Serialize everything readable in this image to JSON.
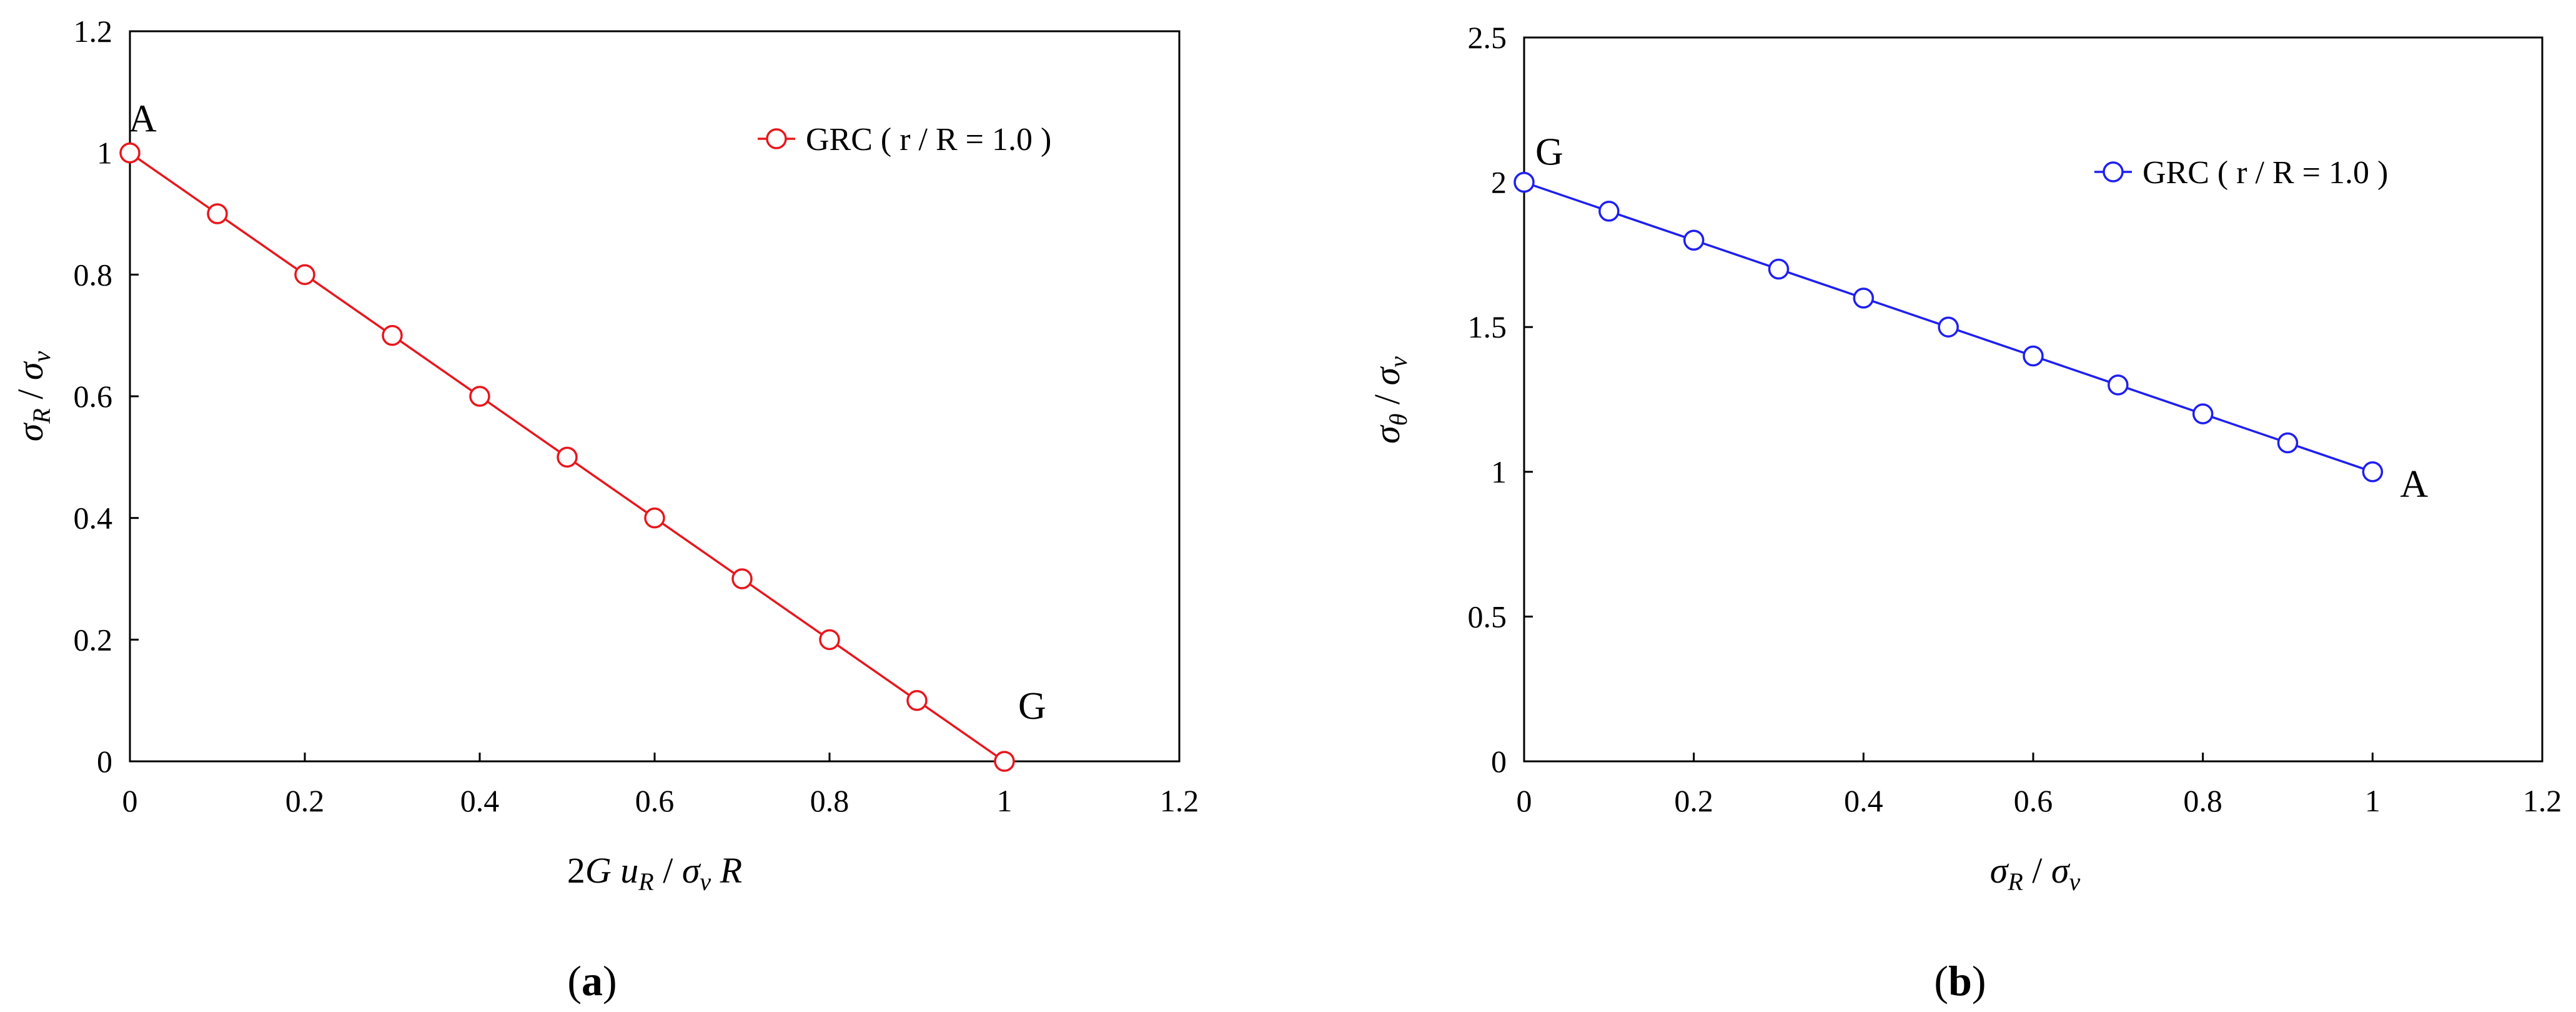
{
  "chart_data": [
    {
      "type": "line",
      "panel_label": "(a)",
      "panel_letter": "a",
      "xlabel": "2G u_R / σ_v R",
      "ylabel": "σ_R / σ_v",
      "xlim": [
        0,
        1.2
      ],
      "ylim": [
        0,
        1.2
      ],
      "xticks": [
        "0",
        "0.2",
        "0.4",
        "0.6",
        "0.8",
        "1",
        "1.2"
      ],
      "yticks": [
        "0",
        "0.2",
        "0.4",
        "0.6",
        "0.8",
        "1",
        "1.2"
      ],
      "grid": false,
      "legend_position": "top-right",
      "series": [
        {
          "name": "GRC ( r / R = 1.0 )",
          "color": "#e8171d",
          "marker": "open-circle",
          "x": [
            0,
            0.1,
            0.2,
            0.3,
            0.4,
            0.5,
            0.6,
            0.7,
            0.8,
            0.9,
            1.0
          ],
          "y": [
            1.0,
            0.9,
            0.8,
            0.7,
            0.6,
            0.5,
            0.4,
            0.3,
            0.2,
            0.1,
            0.0
          ]
        }
      ],
      "annotations": [
        {
          "text": "A",
          "x": 0,
          "y": 1.0
        },
        {
          "text": "G",
          "x": 1.0,
          "y": 0.0
        }
      ]
    },
    {
      "type": "line",
      "panel_label": "(b)",
      "panel_letter": "b",
      "xlabel": "σ_R / σ_v",
      "ylabel": "σ_θ / σ_v",
      "xlim": [
        0,
        1.2
      ],
      "ylim": [
        0,
        2.5
      ],
      "xticks": [
        "0",
        "0.2",
        "0.4",
        "0.6",
        "0.8",
        "1",
        "1.2"
      ],
      "yticks": [
        "0",
        "0.5",
        "1",
        "1.5",
        "2",
        "2.5"
      ],
      "grid": false,
      "legend_position": "top-right",
      "series": [
        {
          "name": "GRC ( r / R = 1.0 )",
          "color": "#1f1ff0",
          "marker": "open-circle",
          "x": [
            0,
            0.1,
            0.2,
            0.3,
            0.4,
            0.5,
            0.6,
            0.7,
            0.8,
            0.9,
            1.0
          ],
          "y": [
            2.0,
            1.9,
            1.8,
            1.7,
            1.6,
            1.5,
            1.4,
            1.3,
            1.2,
            1.1,
            1.0
          ]
        }
      ],
      "annotations": [
        {
          "text": "G",
          "x": 0,
          "y": 2.0
        },
        {
          "text": "A",
          "x": 1.0,
          "y": 1.0
        }
      ]
    }
  ]
}
